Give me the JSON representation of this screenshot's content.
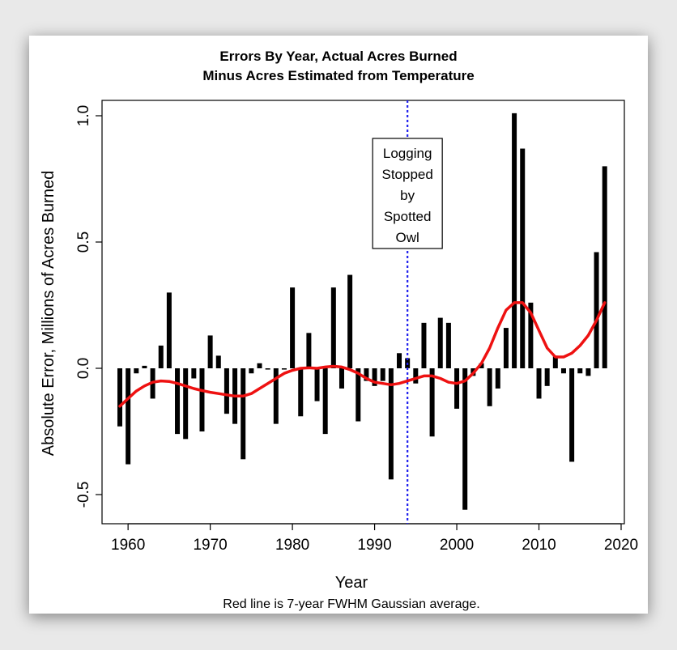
{
  "chart_data": {
    "type": "bar",
    "title_line1": "Errors By Year, Actual Acres Burned",
    "title_line2": "Minus Acres Estimated from Temperature",
    "xlabel": "Year",
    "ylabel": "Absolute Error, Millions of Acres Burned",
    "caption": "Red line is 7-year FWHM Gaussian average.",
    "xlim": [
      1957,
      2020
    ],
    "ylim": [
      -0.6,
      1.05
    ],
    "x_ticks": [
      1960,
      1970,
      1980,
      1990,
      2000,
      2010,
      2020
    ],
    "x_tick_labels": [
      "1960",
      "1970",
      "1980",
      "1990",
      "2000",
      "2010",
      "2020"
    ],
    "y_ticks": [
      -0.5,
      0.0,
      0.5,
      1.0
    ],
    "y_tick_labels": [
      "-0.5",
      "0.0",
      "0.5",
      "1.0"
    ],
    "annotation": {
      "x": 1994,
      "lines": [
        "Logging",
        "Stopped",
        "by",
        "Spotted",
        "Owl"
      ]
    },
    "series": [
      {
        "name": "Error",
        "style": "bars",
        "color": "#000000",
        "x": [
          1959,
          1960,
          1961,
          1962,
          1963,
          1964,
          1965,
          1966,
          1967,
          1968,
          1969,
          1970,
          1971,
          1972,
          1973,
          1974,
          1975,
          1976,
          1977,
          1978,
          1979,
          1980,
          1981,
          1982,
          1983,
          1984,
          1985,
          1986,
          1987,
          1988,
          1989,
          1990,
          1991,
          1992,
          1993,
          1994,
          1995,
          1996,
          1997,
          1998,
          1999,
          2000,
          2001,
          2002,
          2003,
          2004,
          2005,
          2006,
          2007,
          2008,
          2009,
          2010,
          2011,
          2012,
          2013,
          2014,
          2015,
          2016,
          2017,
          2018
        ],
        "values": [
          -0.23,
          -0.38,
          -0.02,
          0.01,
          -0.12,
          0.09,
          0.3,
          -0.26,
          -0.28,
          -0.04,
          -0.25,
          0.13,
          0.05,
          -0.18,
          -0.22,
          -0.36,
          -0.02,
          0.02,
          -0.005,
          -0.22,
          -0.005,
          0.32,
          -0.19,
          0.14,
          -0.13,
          -0.26,
          0.32,
          -0.08,
          0.37,
          -0.21,
          -0.05,
          -0.07,
          -0.05,
          -0.44,
          0.06,
          0.04,
          -0.06,
          0.18,
          -0.27,
          0.2,
          0.18,
          -0.16,
          -0.56,
          -0.03,
          0.02,
          -0.15,
          -0.08,
          0.16,
          1.01,
          0.87,
          0.26,
          -0.12,
          -0.07,
          0.05,
          -0.02,
          -0.37,
          -0.02,
          -0.03,
          0.46,
          0.8
        ]
      },
      {
        "name": "7-year FWHM Gaussian average",
        "style": "line",
        "color": "#ee1111",
        "x": [
          1959,
          1960,
          1961,
          1962,
          1963,
          1964,
          1965,
          1966,
          1967,
          1968,
          1969,
          1970,
          1971,
          1972,
          1973,
          1974,
          1975,
          1976,
          1977,
          1978,
          1979,
          1980,
          1981,
          1982,
          1983,
          1984,
          1985,
          1986,
          1987,
          1988,
          1989,
          1990,
          1991,
          1992,
          1993,
          1994,
          1995,
          1996,
          1997,
          1998,
          1999,
          2000,
          2001,
          2002,
          2003,
          2004,
          2005,
          2006,
          2007,
          2008,
          2009,
          2010,
          2011,
          2012,
          2013,
          2014,
          2015,
          2016,
          2017,
          2018
        ],
        "values": [
          -0.15,
          -0.12,
          -0.09,
          -0.07,
          -0.055,
          -0.05,
          -0.052,
          -0.06,
          -0.07,
          -0.08,
          -0.088,
          -0.095,
          -0.1,
          -0.105,
          -0.11,
          -0.11,
          -0.1,
          -0.08,
          -0.06,
          -0.04,
          -0.02,
          -0.008,
          0.0,
          0.002,
          0.0,
          0.005,
          0.008,
          0.005,
          -0.005,
          -0.02,
          -0.04,
          -0.055,
          -0.06,
          -0.065,
          -0.06,
          -0.05,
          -0.04,
          -0.03,
          -0.03,
          -0.04,
          -0.055,
          -0.06,
          -0.05,
          -0.02,
          0.02,
          0.08,
          0.16,
          0.23,
          0.26,
          0.26,
          0.22,
          0.15,
          0.08,
          0.045,
          0.045,
          0.06,
          0.09,
          0.13,
          0.19,
          0.26
        ]
      }
    ],
    "vline": {
      "x": 1994,
      "color": "#2222ee",
      "style": "dotted"
    }
  }
}
